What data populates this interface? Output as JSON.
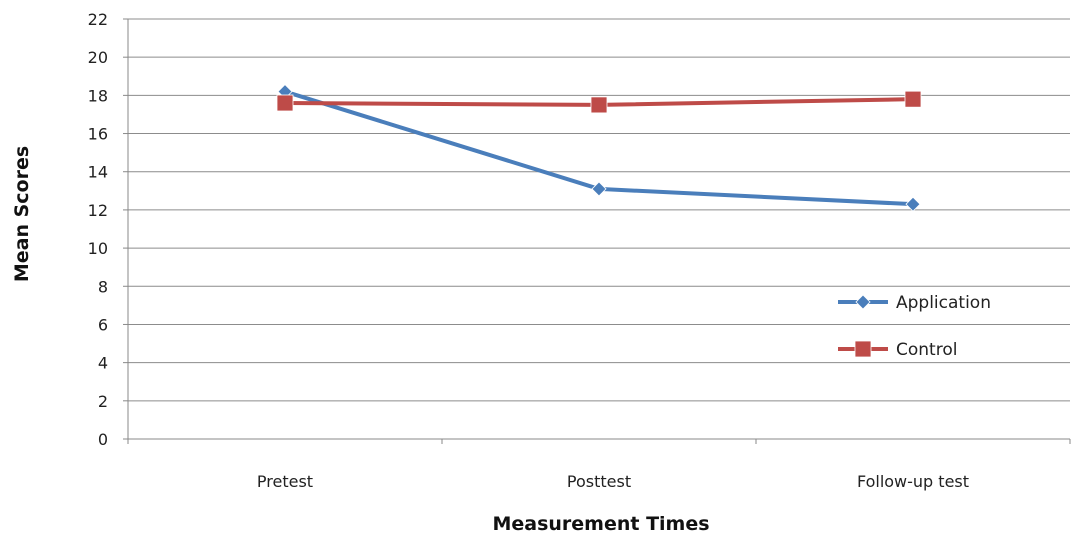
{
  "chart_data": {
    "type": "line",
    "categories": [
      "Pretest",
      "Posttest",
      "Follow-up test"
    ],
    "series": [
      {
        "name": "Application",
        "values": [
          18.2,
          13.1,
          12.3
        ],
        "color": "#4a7ebb",
        "marker": "diamond"
      },
      {
        "name": "Control",
        "values": [
          17.6,
          17.5,
          17.8
        ],
        "color": "#be4b48",
        "marker": "square"
      }
    ],
    "xlabel": "Measurement Times",
    "ylabel": "Mean Scores",
    "ylim": [
      0,
      22
    ],
    "yticks": [
      "0",
      "2",
      "4",
      "6",
      "8",
      "10",
      "12",
      "14",
      "16",
      "18",
      "20",
      "22"
    ],
    "grid": true,
    "legend_position": "right"
  }
}
